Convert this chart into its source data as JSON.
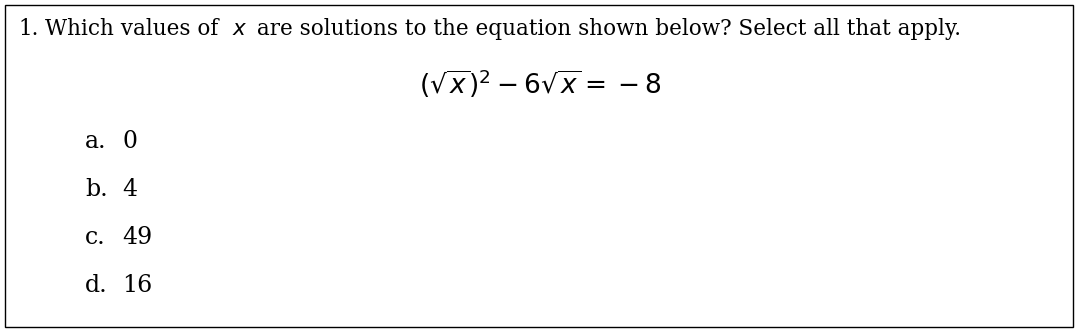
{
  "title_number": "1.",
  "title_text1": "Which values of ",
  "title_x": "$x$",
  "title_text2": " are solutions to the equation shown below? Select all that apply.",
  "equation": "$\\left(\\sqrt{x}\\right)^{2} - 6\\sqrt{x} = -8$",
  "options": [
    {
      "label": "a.",
      "value": "0"
    },
    {
      "label": "b.",
      "value": "4"
    },
    {
      "label": "c.",
      "value": "49"
    },
    {
      "label": "d.",
      "value": "16"
    }
  ],
  "bg_color": "#ffffff",
  "text_color": "#000000",
  "border_color": "#000000",
  "font_size_title": 15.5,
  "font_size_equation": 19,
  "font_size_options": 17
}
